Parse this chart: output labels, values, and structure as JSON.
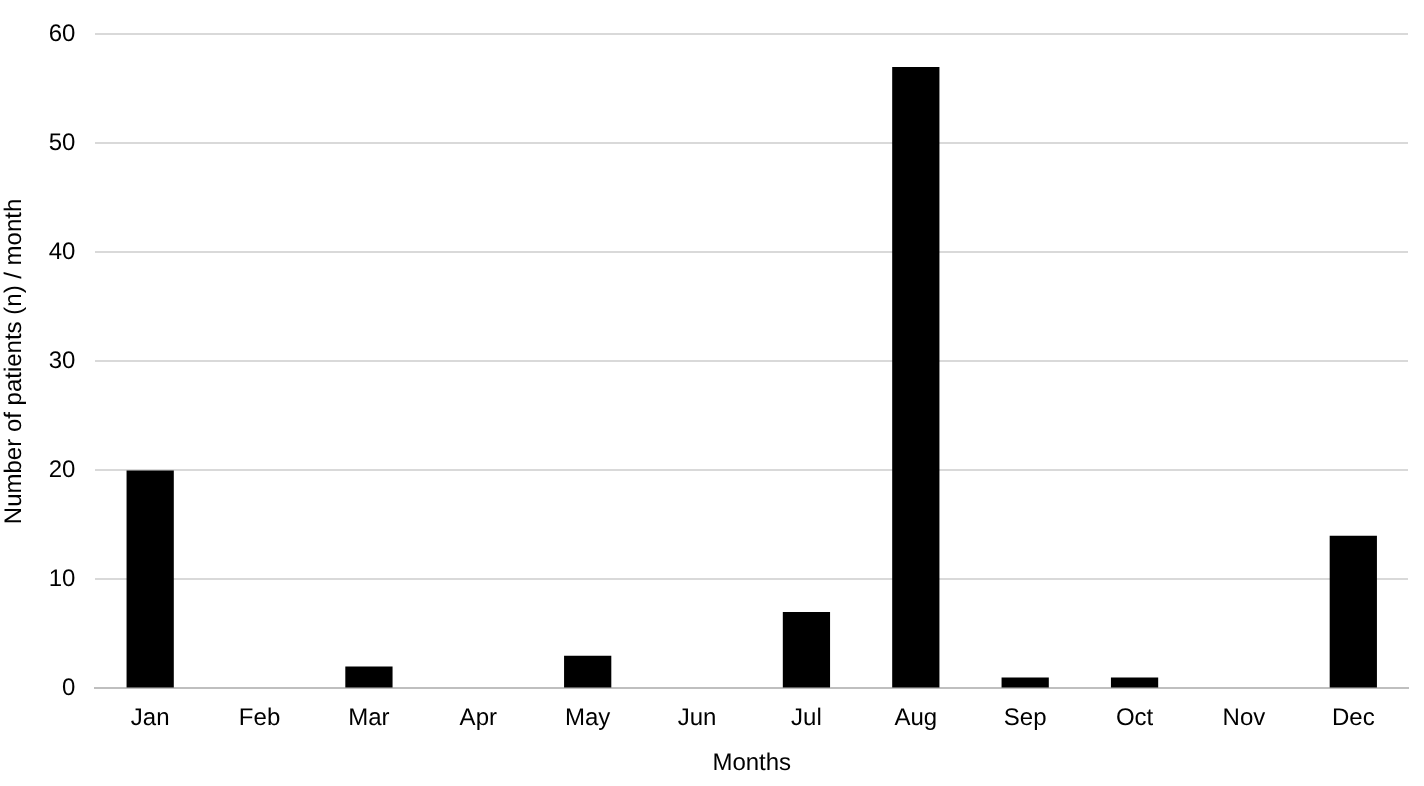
{
  "chart_data": {
    "type": "bar",
    "xlabel": "Months",
    "ylabel": "Number of patients (n) / month",
    "categories": [
      "Jan",
      "Feb",
      "Mar",
      "Apr",
      "May",
      "Jun",
      "Jul",
      "Aug",
      "Sep",
      "Oct",
      "Nov",
      "Dec"
    ],
    "values": [
      20,
      0,
      2,
      0,
      3,
      0,
      7,
      57,
      1,
      1,
      0,
      14
    ],
    "color": "#000000",
    "ylim": [
      0,
      60
    ],
    "yticks": [
      0,
      10,
      20,
      30,
      40,
      50,
      60
    ],
    "grid": "y",
    "legend": false
  }
}
